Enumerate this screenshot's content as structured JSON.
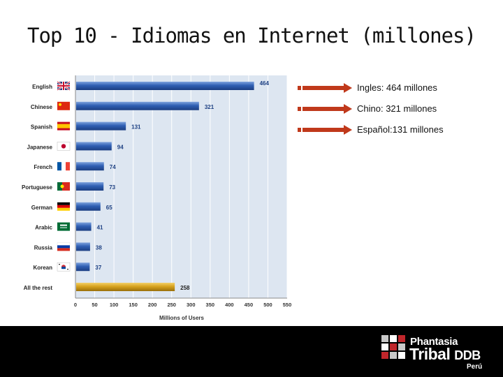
{
  "slide": {
    "title": "Top 10 - Idiomas en Internet (millones)"
  },
  "callouts": [
    {
      "text": "Ingles: 464 millones"
    },
    {
      "text": "Chino: 321 millones"
    },
    {
      "text": "Español:131 millones"
    }
  ],
  "logo": {
    "line1": "Phantasia",
    "line2a": "Tribal",
    "line2b": "DDB",
    "line3": "Perú"
  },
  "colors": {
    "bar_blue": "#2f5fb3",
    "bar_highlight": "#d6a21e",
    "plot_bg": "#dde6f1",
    "arrow": "#c0391b",
    "footer": "#000000"
  },
  "chart_data": {
    "type": "bar",
    "orientation": "horizontal",
    "title": "",
    "xlabel": "Millions of Users",
    "ylabel": "",
    "categories": [
      "English",
      "Chinese",
      "Spanish",
      "Japanese",
      "French",
      "Portuguese",
      "German",
      "Arabic",
      "Russia",
      "Korean",
      "All the rest"
    ],
    "values": [
      464,
      321,
      131,
      94,
      74,
      73,
      65,
      41,
      38,
      37,
      258
    ],
    "value_labels": [
      "464",
      "321",
      "131",
      "94",
      "74",
      "73",
      "65",
      "41",
      "38",
      "37",
      "258"
    ],
    "highlight_category": "All the rest",
    "xlim": [
      0,
      550
    ],
    "xticks": [
      "0",
      "50",
      "100",
      "150",
      "200",
      "250",
      "300",
      "350",
      "400",
      "450",
      "500",
      "550"
    ],
    "grid": true,
    "legend": "none",
    "flags": [
      "uk-flag-icon",
      "china-flag-icon",
      "spain-flag-icon",
      "japan-flag-icon",
      "france-flag-icon",
      "portugal-flag-icon",
      "germany-flag-icon",
      "saudi-flag-icon",
      "russia-flag-icon",
      "korea-flag-icon",
      ""
    ]
  }
}
